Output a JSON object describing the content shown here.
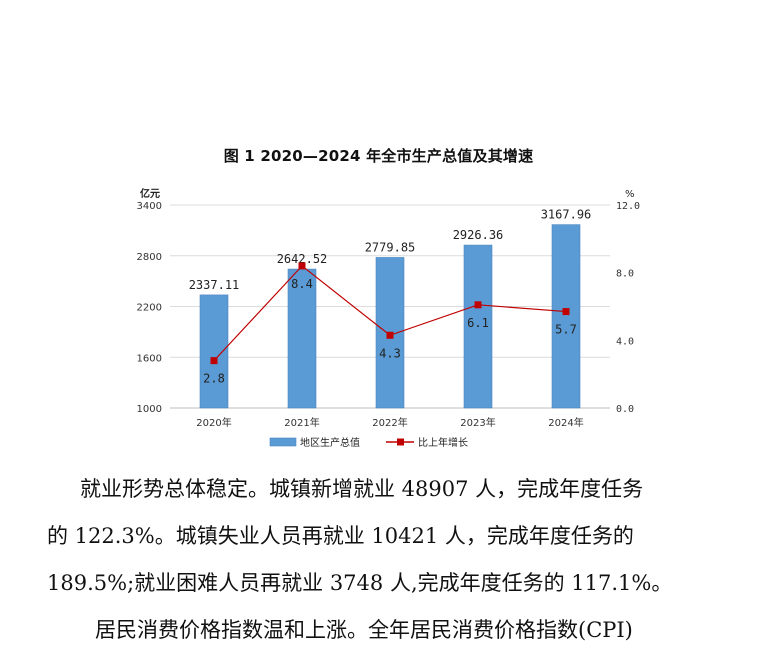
{
  "chart_data": {
    "type": "bar",
    "title": "图 1 2020—2024 年全市生产总值及其增速",
    "categories": [
      "2020年",
      "2021年",
      "2022年",
      "2023年",
      "2024年"
    ],
    "y_left_unit": "亿元",
    "y_right_unit": "%",
    "y_left_ticks": [
      "1000",
      "1600",
      "2200",
      "2800",
      "3400"
    ],
    "y_right_ticks": [
      "0.0",
      "4.0",
      "8.0",
      "12.0"
    ],
    "ylim_left": [
      1000,
      3400
    ],
    "ylim_right": [
      0,
      12
    ],
    "bar_color": "#5b9bd5",
    "line_color": "#c00000",
    "legend_position": "bottom",
    "series": [
      {
        "name": "地区生产总值",
        "kind": "bar",
        "axis": "left",
        "values": [
          2337.11,
          2642.52,
          2779.85,
          2926.36,
          3167.96
        ],
        "labels": [
          "2337.11",
          "2642.52",
          "2779.85",
          "2926.36",
          "3167.96"
        ]
      },
      {
        "name": "比上年增长",
        "kind": "line",
        "axis": "right",
        "values": [
          2.8,
          8.4,
          4.3,
          6.1,
          5.7
        ],
        "labels": [
          "2.8",
          "8.4",
          "4.3",
          "6.1",
          "5.7"
        ]
      }
    ]
  },
  "paragraphs": [
    "就业形势总体稳定。城镇新增就业 48907 人，完成年度任务",
    "的 122.3%。城镇失业人员再就业 10421 人，完成年度任务的",
    "189.5%;就业困难人员再就业 3748 人,完成年度任务的 117.1%。",
    "居民消费价格指数温和上涨。全年居民消费价格指数(CPI)"
  ]
}
